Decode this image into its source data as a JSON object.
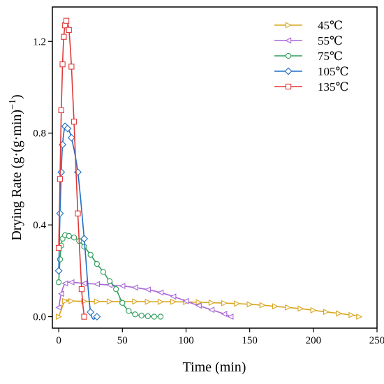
{
  "chart_data": {
    "type": "line",
    "xlabel": "Time (min)",
    "ylabel_main": "Drying Rate (g·(g·min)",
    "ylabel_sup": "−1",
    "ylabel_tail": ")",
    "xlim": [
      -5,
      250
    ],
    "ylim": [
      -0.05,
      1.35
    ],
    "xticks": [
      0,
      50,
      100,
      150,
      200,
      250
    ],
    "yticks": [
      0.0,
      0.4,
      0.8,
      1.2
    ],
    "ytick_labels": [
      "0.0",
      "0.4",
      "0.8",
      "1.2"
    ],
    "legend_position": "top-right",
    "grid": false,
    "series": [
      {
        "name": "45℃",
        "color": "#DAA520",
        "marker": "triangle-right",
        "x": [
          0,
          5,
          10,
          20,
          30,
          40,
          50,
          60,
          70,
          80,
          90,
          100,
          110,
          120,
          130,
          140,
          150,
          160,
          170,
          180,
          190,
          200,
          210,
          220,
          230,
          236
        ],
        "y": [
          0.0,
          0.068,
          0.068,
          0.067,
          0.066,
          0.066,
          0.066,
          0.066,
          0.065,
          0.065,
          0.065,
          0.064,
          0.063,
          0.061,
          0.059,
          0.057,
          0.054,
          0.05,
          0.045,
          0.04,
          0.035,
          0.028,
          0.021,
          0.014,
          0.007,
          0.0
        ]
      },
      {
        "name": "55℃",
        "color": "#A966D8",
        "marker": "triangle-left",
        "x": [
          0,
          2,
          5,
          10,
          20,
          30,
          40,
          50,
          60,
          70,
          80,
          90,
          100,
          110,
          120,
          130,
          135
        ],
        "y": [
          0.04,
          0.1,
          0.145,
          0.15,
          0.145,
          0.142,
          0.138,
          0.134,
          0.127,
          0.118,
          0.105,
          0.088,
          0.068,
          0.048,
          0.03,
          0.012,
          0.0
        ]
      },
      {
        "name": "75℃",
        "color": "#2E9E5B",
        "marker": "circle",
        "x": [
          0,
          1,
          2,
          3,
          5,
          8,
          12,
          16,
          20,
          25,
          30,
          35,
          40,
          45,
          50,
          55,
          60,
          65,
          70,
          75,
          80
        ],
        "y": [
          0.15,
          0.25,
          0.31,
          0.34,
          0.355,
          0.352,
          0.345,
          0.33,
          0.305,
          0.27,
          0.23,
          0.195,
          0.155,
          0.12,
          0.06,
          0.025,
          0.01,
          0.005,
          0.002,
          0.0,
          0.0
        ]
      },
      {
        "name": "105℃",
        "color": "#1F6FC5",
        "marker": "diamond",
        "x": [
          0,
          1,
          2,
          3,
          5,
          7,
          10,
          15,
          20,
          25,
          30
        ],
        "y": [
          0.2,
          0.45,
          0.63,
          0.75,
          0.83,
          0.82,
          0.78,
          0.63,
          0.34,
          0.02,
          0.0
        ]
      },
      {
        "name": "135℃",
        "color": "#E03A3A",
        "marker": "square",
        "x": [
          0,
          1,
          2,
          3,
          4,
          5,
          6,
          8,
          10,
          12,
          15,
          18,
          20
        ],
        "y": [
          0.3,
          0.6,
          0.9,
          1.1,
          1.22,
          1.27,
          1.29,
          1.25,
          1.09,
          0.85,
          0.45,
          0.12,
          0.0
        ]
      }
    ]
  }
}
